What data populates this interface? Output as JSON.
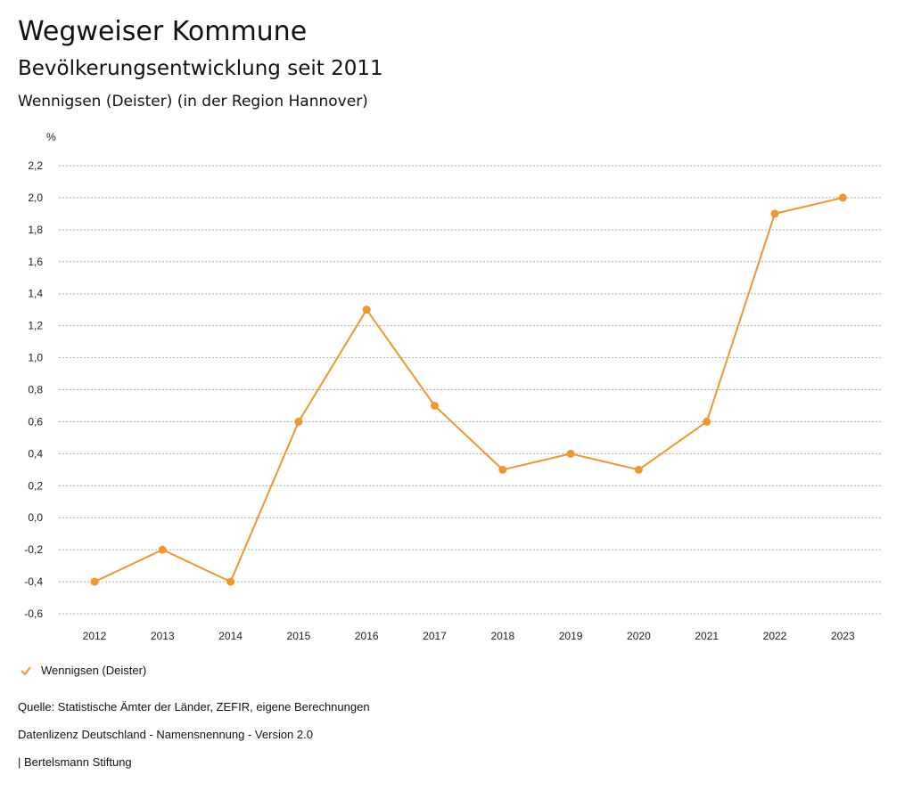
{
  "header": {
    "title": "Wegweiser Kommune",
    "subtitle": "Bevölkerungsentwicklung seit 2011",
    "region": "Wennigsen (Deister) (in der Region Hannover)"
  },
  "chart_data": {
    "type": "line",
    "ylabel": "%",
    "ylim": [
      -0.6,
      2.2
    ],
    "yticks": [
      "2,2",
      "2,0",
      "1,8",
      "1,6",
      "1,4",
      "1,2",
      "1,0",
      "0,8",
      "0,6",
      "0,4",
      "0,2",
      "0,0",
      "-0,2",
      "-0,4",
      "-0,6"
    ],
    "ytick_values": [
      2.2,
      2.0,
      1.8,
      1.6,
      1.4,
      1.2,
      1.0,
      0.8,
      0.6,
      0.4,
      0.2,
      0.0,
      -0.2,
      -0.4,
      -0.6
    ],
    "categories": [
      "2012",
      "2013",
      "2014",
      "2015",
      "2016",
      "2017",
      "2018",
      "2019",
      "2020",
      "2021",
      "2022",
      "2023"
    ],
    "series": [
      {
        "name": "Wennigsen (Deister)",
        "values": [
          -0.4,
          -0.2,
          -0.4,
          0.6,
          1.3,
          0.7,
          0.3,
          0.4,
          0.3,
          0.6,
          1.9,
          2.0
        ],
        "color": "#ef9630"
      }
    ],
    "grid": true,
    "legend": "bottom-left"
  },
  "footer": {
    "source": "Quelle: Statistische Ämter der Länder, ZEFIR, eigene Berechnungen",
    "license": "Datenlizenz Deutschland - Namensnennung - Version 2.0",
    "publisher": "| Bertelsmann Stiftung"
  }
}
